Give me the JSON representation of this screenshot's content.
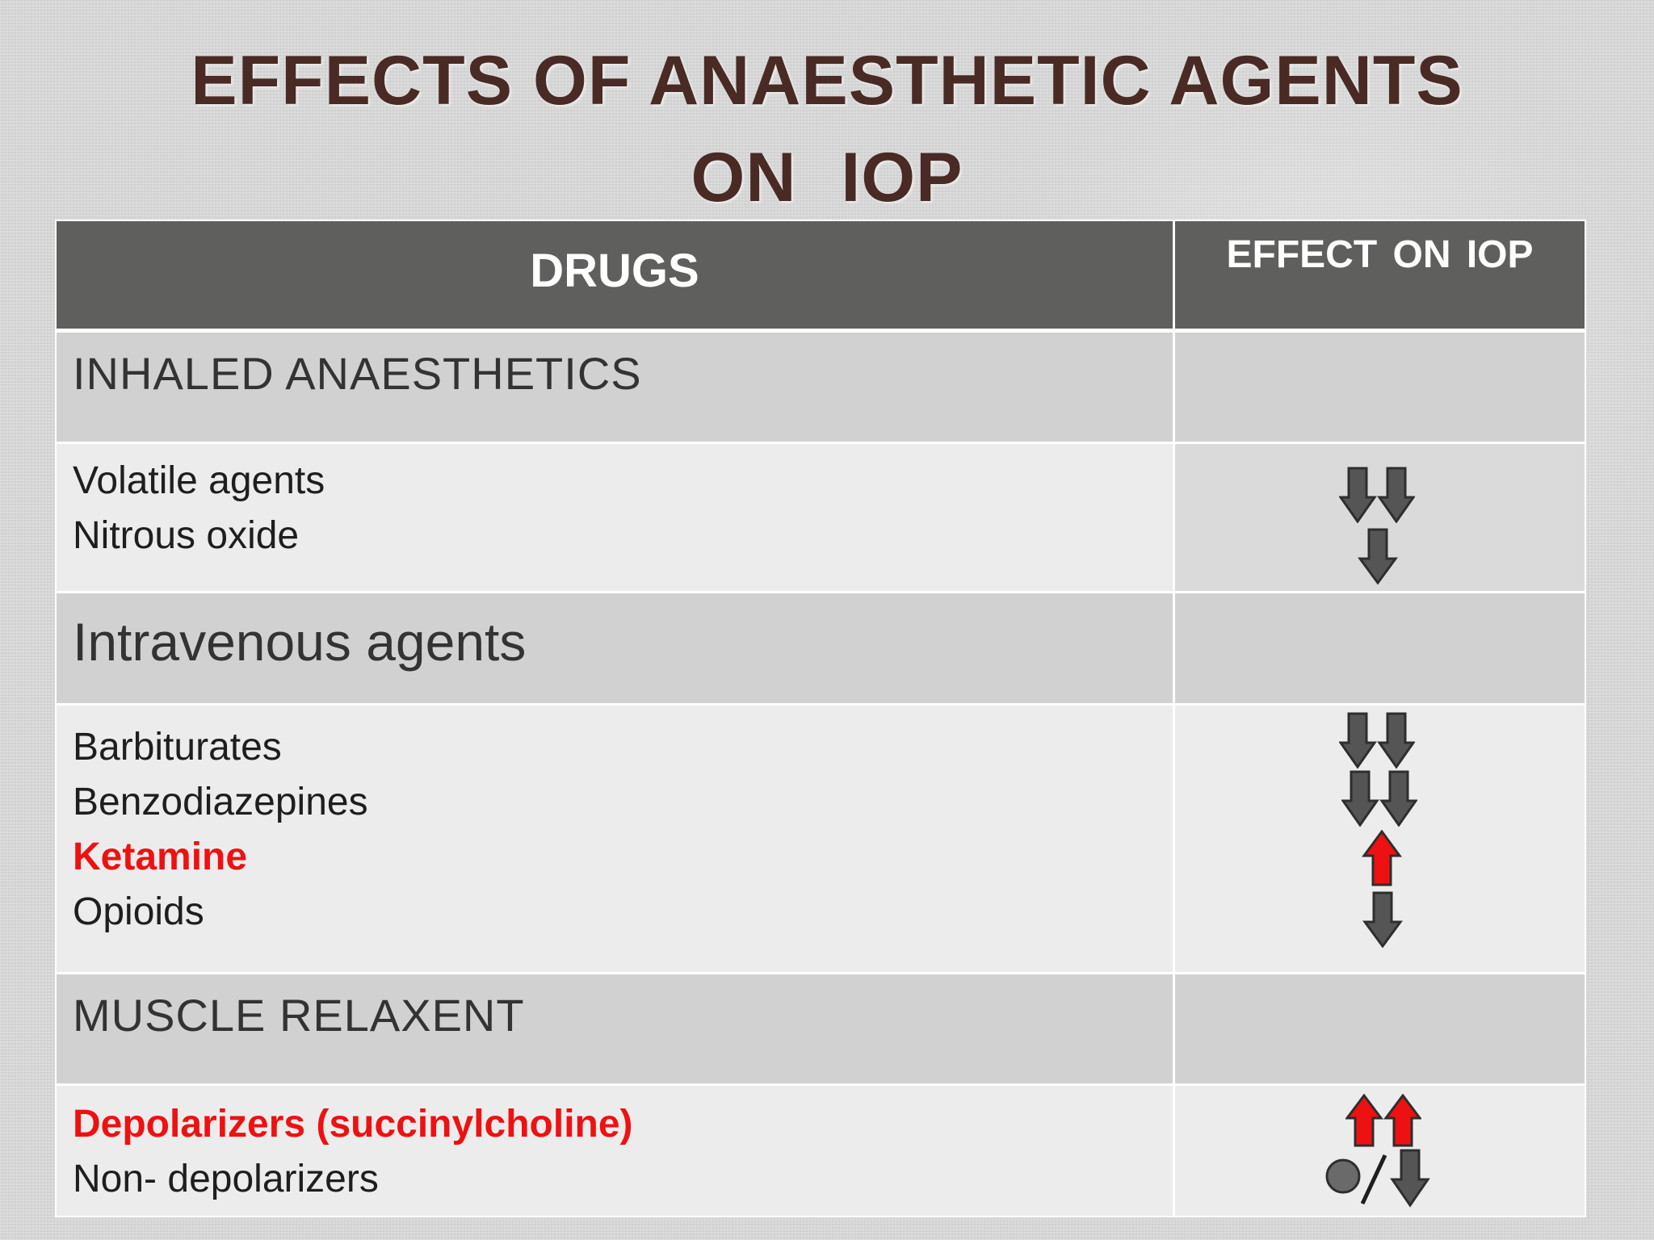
{
  "title": {
    "line1": "EFFECTS OF ANAESTHETIC AGENTS",
    "line2": "ON   IOP"
  },
  "table": {
    "headers": {
      "drugs": "DRUGS",
      "effect": "EFFECT ON  IOP"
    },
    "sections": [
      {
        "category": "INHALED  ANAESTHETICS",
        "items": [
          {
            "name": "Volatile agents",
            "effect": "double-decrease",
            "highlight": false
          },
          {
            "name": "Nitrous oxide",
            "effect": "decrease",
            "highlight": false
          }
        ]
      },
      {
        "category": "Intravenous agents",
        "items": [
          {
            "name": "Barbiturates",
            "effect": "double-decrease",
            "highlight": false
          },
          {
            "name": "Benzodiazepines",
            "effect": "double-decrease",
            "highlight": false
          },
          {
            "name": "Ketamine",
            "effect": "increase",
            "highlight": true
          },
          {
            "name": "Opioids",
            "effect": "decrease",
            "highlight": false
          }
        ]
      },
      {
        "category": "MUSCLE RELAXENT",
        "items": [
          {
            "name": "Depolarizers (succinylcholine)",
            "effect": "double-increase",
            "highlight": true
          },
          {
            "name": "Non- depolarizers",
            "effect": "no-change-or-decrease",
            "highlight": false
          }
        ]
      }
    ]
  },
  "colors": {
    "title": "#4a2a24",
    "header_bg": "#5f5f5d",
    "highlight_text": "#ee1111",
    "arrow_decrease": "#555555",
    "arrow_increase": "#ee1111"
  },
  "icons": {
    "decrease": "down-arrow-icon",
    "increase": "up-arrow-icon",
    "no_change": "circle-icon"
  }
}
